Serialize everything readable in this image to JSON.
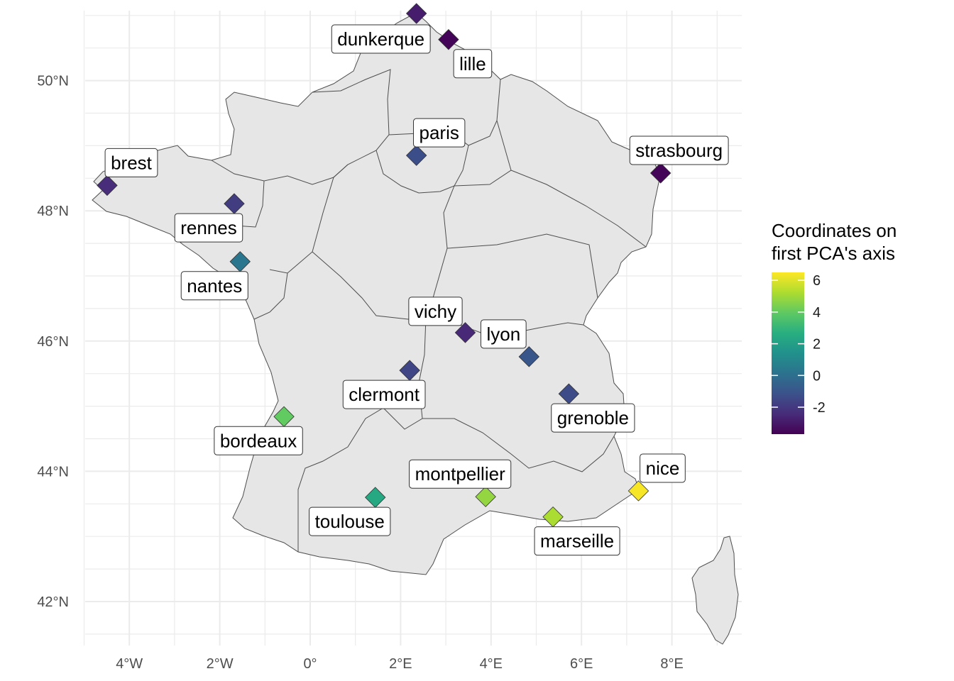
{
  "axes": {
    "x_ticks": [
      {
        "value": -4,
        "label": "4°W"
      },
      {
        "value": -2,
        "label": "2°W"
      },
      {
        "value": 0,
        "label": "0°"
      },
      {
        "value": 2,
        "label": "2°E"
      },
      {
        "value": 4,
        "label": "4°E"
      },
      {
        "value": 6,
        "label": "6°E"
      },
      {
        "value": 8,
        "label": "8°E"
      }
    ],
    "y_ticks": [
      {
        "value": 42,
        "label": "42°N"
      },
      {
        "value": 44,
        "label": "44°N"
      },
      {
        "value": 46,
        "label": "46°N"
      },
      {
        "value": 48,
        "label": "48°N"
      },
      {
        "value": 50,
        "label": "50°N"
      }
    ]
  },
  "legend": {
    "title_line1": "Coordinates on",
    "title_line2": "first PCA's axis",
    "ticks": [
      {
        "value": 6,
        "label": "6"
      },
      {
        "value": 4,
        "label": "4"
      },
      {
        "value": 2,
        "label": "2"
      },
      {
        "value": 0,
        "label": "0"
      },
      {
        "value": -2,
        "label": "-2"
      }
    ],
    "range": [
      -3.7,
      6.5
    ]
  },
  "cities": [
    {
      "name": "dunkerque",
      "lon": 2.35,
      "lat": 51.03,
      "pca": -2.9
    },
    {
      "name": "lille",
      "lon": 3.06,
      "lat": 50.63,
      "pca": -3.6
    },
    {
      "name": "paris",
      "lon": 2.35,
      "lat": 48.85,
      "pca": -1.3
    },
    {
      "name": "strasbourg",
      "lon": 7.75,
      "lat": 48.58,
      "pca": -3.6
    },
    {
      "name": "brest",
      "lon": -4.49,
      "lat": 48.39,
      "pca": -2.4
    },
    {
      "name": "rennes",
      "lon": -1.68,
      "lat": 48.11,
      "pca": -1.9
    },
    {
      "name": "nantes",
      "lon": -1.55,
      "lat": 47.22,
      "pca": 0.3
    },
    {
      "name": "vichy",
      "lon": 3.43,
      "lat": 46.13,
      "pca": -2.5
    },
    {
      "name": "lyon",
      "lon": 4.84,
      "lat": 45.76,
      "pca": -1.0
    },
    {
      "name": "clermont",
      "lon": 2.2,
      "lat": 45.55,
      "pca": -1.6
    },
    {
      "name": "grenoble",
      "lon": 5.72,
      "lat": 45.19,
      "pca": -1.4
    },
    {
      "name": "bordeaux",
      "lon": -0.58,
      "lat": 44.84,
      "pca": 4.0
    },
    {
      "name": "montpellier",
      "lon": 3.88,
      "lat": 43.61,
      "pca": 4.8
    },
    {
      "name": "toulouse",
      "lon": 1.44,
      "lat": 43.6,
      "pca": 2.4
    },
    {
      "name": "nice",
      "lon": 7.26,
      "lat": 43.7,
      "pca": 6.4
    },
    {
      "name": "marseille",
      "lon": 5.37,
      "lat": 43.3,
      "pca": 5.2
    }
  ]
}
